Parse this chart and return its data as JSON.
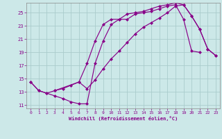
{
  "xlabel": "Windchill (Refroidissement éolien,°C)",
  "bg_color": "#cce8e8",
  "line_color": "#880088",
  "grid_color": "#aacccc",
  "xlim": [
    -0.5,
    23.5
  ],
  "ylim": [
    10.5,
    26.5
  ],
  "xticks": [
    0,
    1,
    2,
    3,
    4,
    5,
    6,
    7,
    8,
    9,
    10,
    11,
    12,
    13,
    14,
    15,
    16,
    17,
    18,
    19,
    20,
    21,
    22,
    23
  ],
  "yticks": [
    11,
    13,
    15,
    17,
    19,
    21,
    23,
    25
  ],
  "line1_x": [
    0,
    1,
    2,
    3,
    4,
    5,
    6,
    7,
    8,
    9,
    10,
    11,
    12,
    13,
    14,
    15,
    16,
    17,
    18,
    19,
    20,
    21
  ],
  "line1_y": [
    14.5,
    13.2,
    12.8,
    12.4,
    12.0,
    11.5,
    11.2,
    11.2,
    17.3,
    20.7,
    23.2,
    24.0,
    24.0,
    24.8,
    25.0,
    25.2,
    25.6,
    26.0,
    26.2,
    24.0,
    19.2,
    19.0
  ],
  "line2_x": [
    0,
    1,
    2,
    3,
    4,
    5,
    6,
    7,
    8,
    9,
    10,
    11,
    12,
    13,
    14,
    15,
    16,
    17,
    18,
    19,
    20,
    21,
    22,
    23
  ],
  "line2_y": [
    14.5,
    13.2,
    12.8,
    13.2,
    13.5,
    14.0,
    14.5,
    13.5,
    14.8,
    16.5,
    18.0,
    19.2,
    20.5,
    21.8,
    22.8,
    23.5,
    24.2,
    25.0,
    26.0,
    26.2,
    24.5,
    22.5,
    19.5,
    18.5
  ],
  "line3_x": [
    3,
    6,
    7,
    8,
    9,
    10,
    11,
    12,
    13,
    14,
    15,
    16,
    17,
    18,
    19,
    20,
    21,
    22,
    23
  ],
  "line3_y": [
    13.2,
    14.5,
    17.3,
    20.7,
    23.2,
    24.0,
    24.0,
    24.8,
    25.0,
    25.2,
    25.6,
    26.0,
    26.2,
    26.5,
    26.2,
    24.5,
    22.5,
    19.5,
    18.5
  ]
}
